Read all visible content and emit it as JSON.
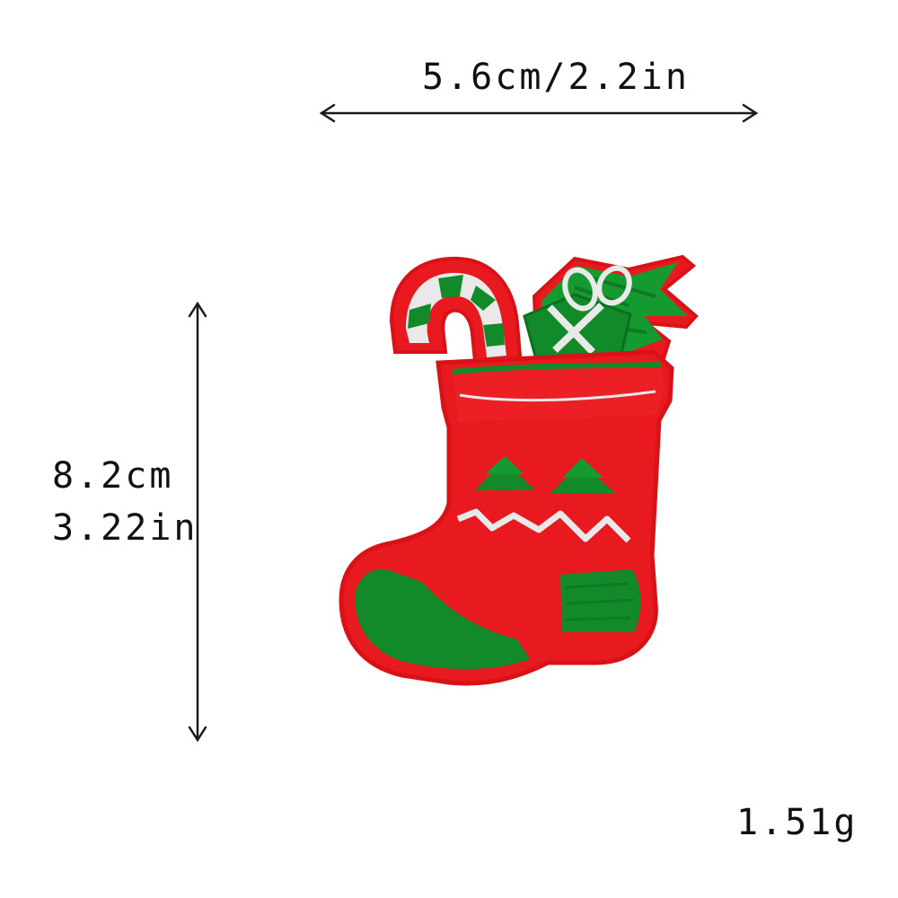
{
  "dimensions": {
    "width_label": "5.6cm/2.2in",
    "height_label_cm": "8.2cm",
    "height_label_in": "3.22in",
    "weight_label": "1.51g"
  },
  "product": {
    "icon": "christmas-stocking-patch",
    "colors": {
      "stocking_red": "#e8191f",
      "felt_border": "#d81217",
      "embroidery_green": "#128a2a",
      "embroidery_silver": "#e9e9e9"
    }
  }
}
